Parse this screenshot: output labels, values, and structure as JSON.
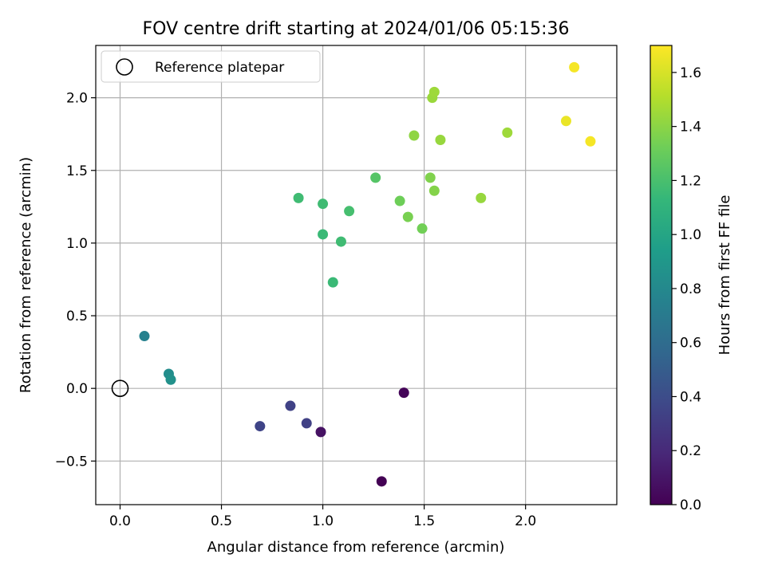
{
  "chart_data": {
    "type": "scatter",
    "title": "FOV centre drift starting at 2024/01/06 05:15:36",
    "xlabel": "Angular distance from reference (arcmin)",
    "ylabel": "Rotation from reference (arcmin)",
    "xlim": [
      -0.12,
      2.45
    ],
    "ylim": [
      -0.8,
      2.36
    ],
    "xticks": [
      0.0,
      0.5,
      1.0,
      1.5,
      2.0
    ],
    "yticks": [
      -0.5,
      0.0,
      0.5,
      1.0,
      1.5,
      2.0
    ],
    "xtick_labels": [
      "0.0",
      "0.5",
      "1.0",
      "1.5",
      "2.0"
    ],
    "ytick_labels": [
      "−0.5",
      "0.0",
      "0.5",
      "1.0",
      "1.5",
      "2.0"
    ],
    "grid": true,
    "legend": {
      "position": "top-left",
      "entries": [
        "Reference platepar"
      ]
    },
    "reference_point": {
      "x": 0.0,
      "y": 0.0,
      "label": "Reference platepar",
      "marker": "open-circle"
    },
    "colorbar": {
      "label": "Hours from first FF file",
      "range": [
        0.0,
        1.7
      ],
      "ticks": [
        0.0,
        0.2,
        0.4,
        0.6,
        0.8,
        1.0,
        1.2,
        1.4,
        1.6
      ],
      "tick_labels": [
        "0.0",
        "0.2",
        "0.4",
        "0.6",
        "0.8",
        "1.0",
        "1.2",
        "1.4",
        "1.6"
      ],
      "colormap": "viridis",
      "colormap_stops": [
        "#440154",
        "#482878",
        "#3e4989",
        "#31688e",
        "#26828e",
        "#1f9e89",
        "#35b779",
        "#6ece58",
        "#b5de2b",
        "#fde725"
      ]
    },
    "points": [
      {
        "x": 1.29,
        "y": -0.64,
        "c": 0.0
      },
      {
        "x": 1.4,
        "y": -0.03,
        "c": 0.02
      },
      {
        "x": 0.99,
        "y": -0.3,
        "c": 0.08
      },
      {
        "x": 0.92,
        "y": -0.24,
        "c": 0.33
      },
      {
        "x": 0.84,
        "y": -0.12,
        "c": 0.34
      },
      {
        "x": 0.69,
        "y": -0.26,
        "c": 0.35
      },
      {
        "x": 0.12,
        "y": 0.36,
        "c": 0.75
      },
      {
        "x": 0.24,
        "y": 0.1,
        "c": 0.83
      },
      {
        "x": 0.25,
        "y": 0.06,
        "c": 0.86
      },
      {
        "x": 1.05,
        "y": 0.73,
        "c": 1.15
      },
      {
        "x": 1.09,
        "y": 1.01,
        "c": 1.17
      },
      {
        "x": 1.0,
        "y": 1.06,
        "c": 1.15
      },
      {
        "x": 0.88,
        "y": 1.31,
        "c": 1.17
      },
      {
        "x": 1.0,
        "y": 1.27,
        "c": 1.17
      },
      {
        "x": 1.13,
        "y": 1.22,
        "c": 1.19
      },
      {
        "x": 1.26,
        "y": 1.45,
        "c": 1.24
      },
      {
        "x": 1.38,
        "y": 1.29,
        "c": 1.32
      },
      {
        "x": 1.42,
        "y": 1.18,
        "c": 1.35
      },
      {
        "x": 1.49,
        "y": 1.1,
        "c": 1.33
      },
      {
        "x": 1.53,
        "y": 1.45,
        "c": 1.37
      },
      {
        "x": 1.55,
        "y": 1.36,
        "c": 1.38
      },
      {
        "x": 1.45,
        "y": 1.74,
        "c": 1.41
      },
      {
        "x": 1.58,
        "y": 1.71,
        "c": 1.43
      },
      {
        "x": 1.54,
        "y": 2.0,
        "c": 1.44
      },
      {
        "x": 1.55,
        "y": 2.04,
        "c": 1.45
      },
      {
        "x": 1.78,
        "y": 1.31,
        "c": 1.43
      },
      {
        "x": 1.91,
        "y": 1.76,
        "c": 1.45
      },
      {
        "x": 2.2,
        "y": 1.84,
        "c": 1.65
      },
      {
        "x": 2.24,
        "y": 2.21,
        "c": 1.68
      },
      {
        "x": 2.32,
        "y": 1.7,
        "c": 1.68
      }
    ]
  }
}
